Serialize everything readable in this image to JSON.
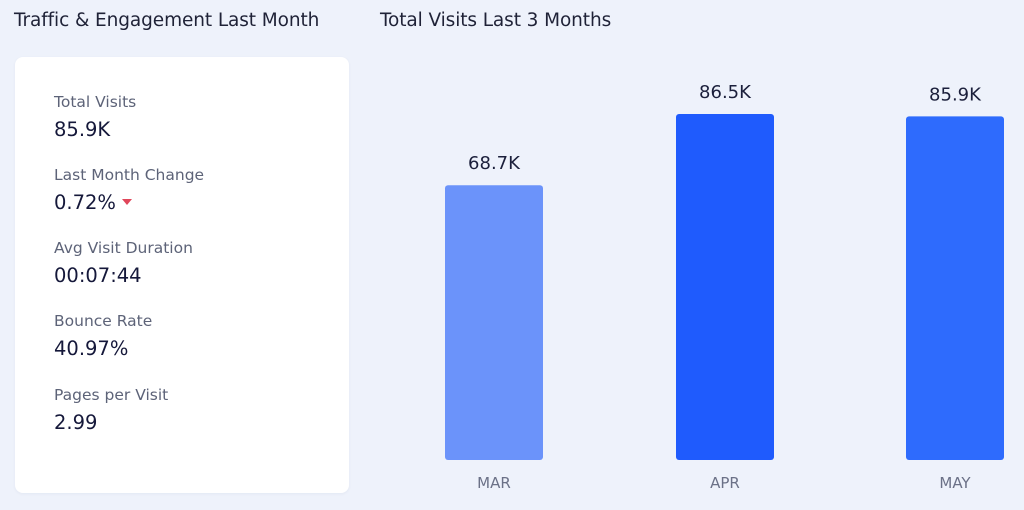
{
  "left_panel": {
    "title": "Traffic & Engagement Last Month",
    "metrics": [
      {
        "label": "Total Visits",
        "value": "85.9K"
      },
      {
        "label": "Last Month Change",
        "value": "0.72%",
        "trend": "down",
        "trend_color": "#e0465a",
        "trend_icon": "caret-down-icon"
      },
      {
        "label": "Avg Visit Duration",
        "value": "00:07:44"
      },
      {
        "label": "Bounce Rate",
        "value": "40.97%"
      },
      {
        "label": "Pages per Visit",
        "value": "2.99"
      }
    ]
  },
  "right_panel": {
    "title": "Total Visits Last 3 Months"
  },
  "chart_data": {
    "type": "bar",
    "title": "Total Visits Last 3 Months",
    "categories": [
      "MAR",
      "APR",
      "MAY"
    ],
    "values": [
      68700,
      86500,
      85900
    ],
    "data_labels": [
      "68.7K",
      "86.5K",
      "85.9K"
    ],
    "bar_colors": [
      "#6b93fa",
      "#1f5bfd",
      "#2e6bfd"
    ],
    "ylim": [
      0,
      100000
    ],
    "grid": false,
    "legend": "none"
  }
}
